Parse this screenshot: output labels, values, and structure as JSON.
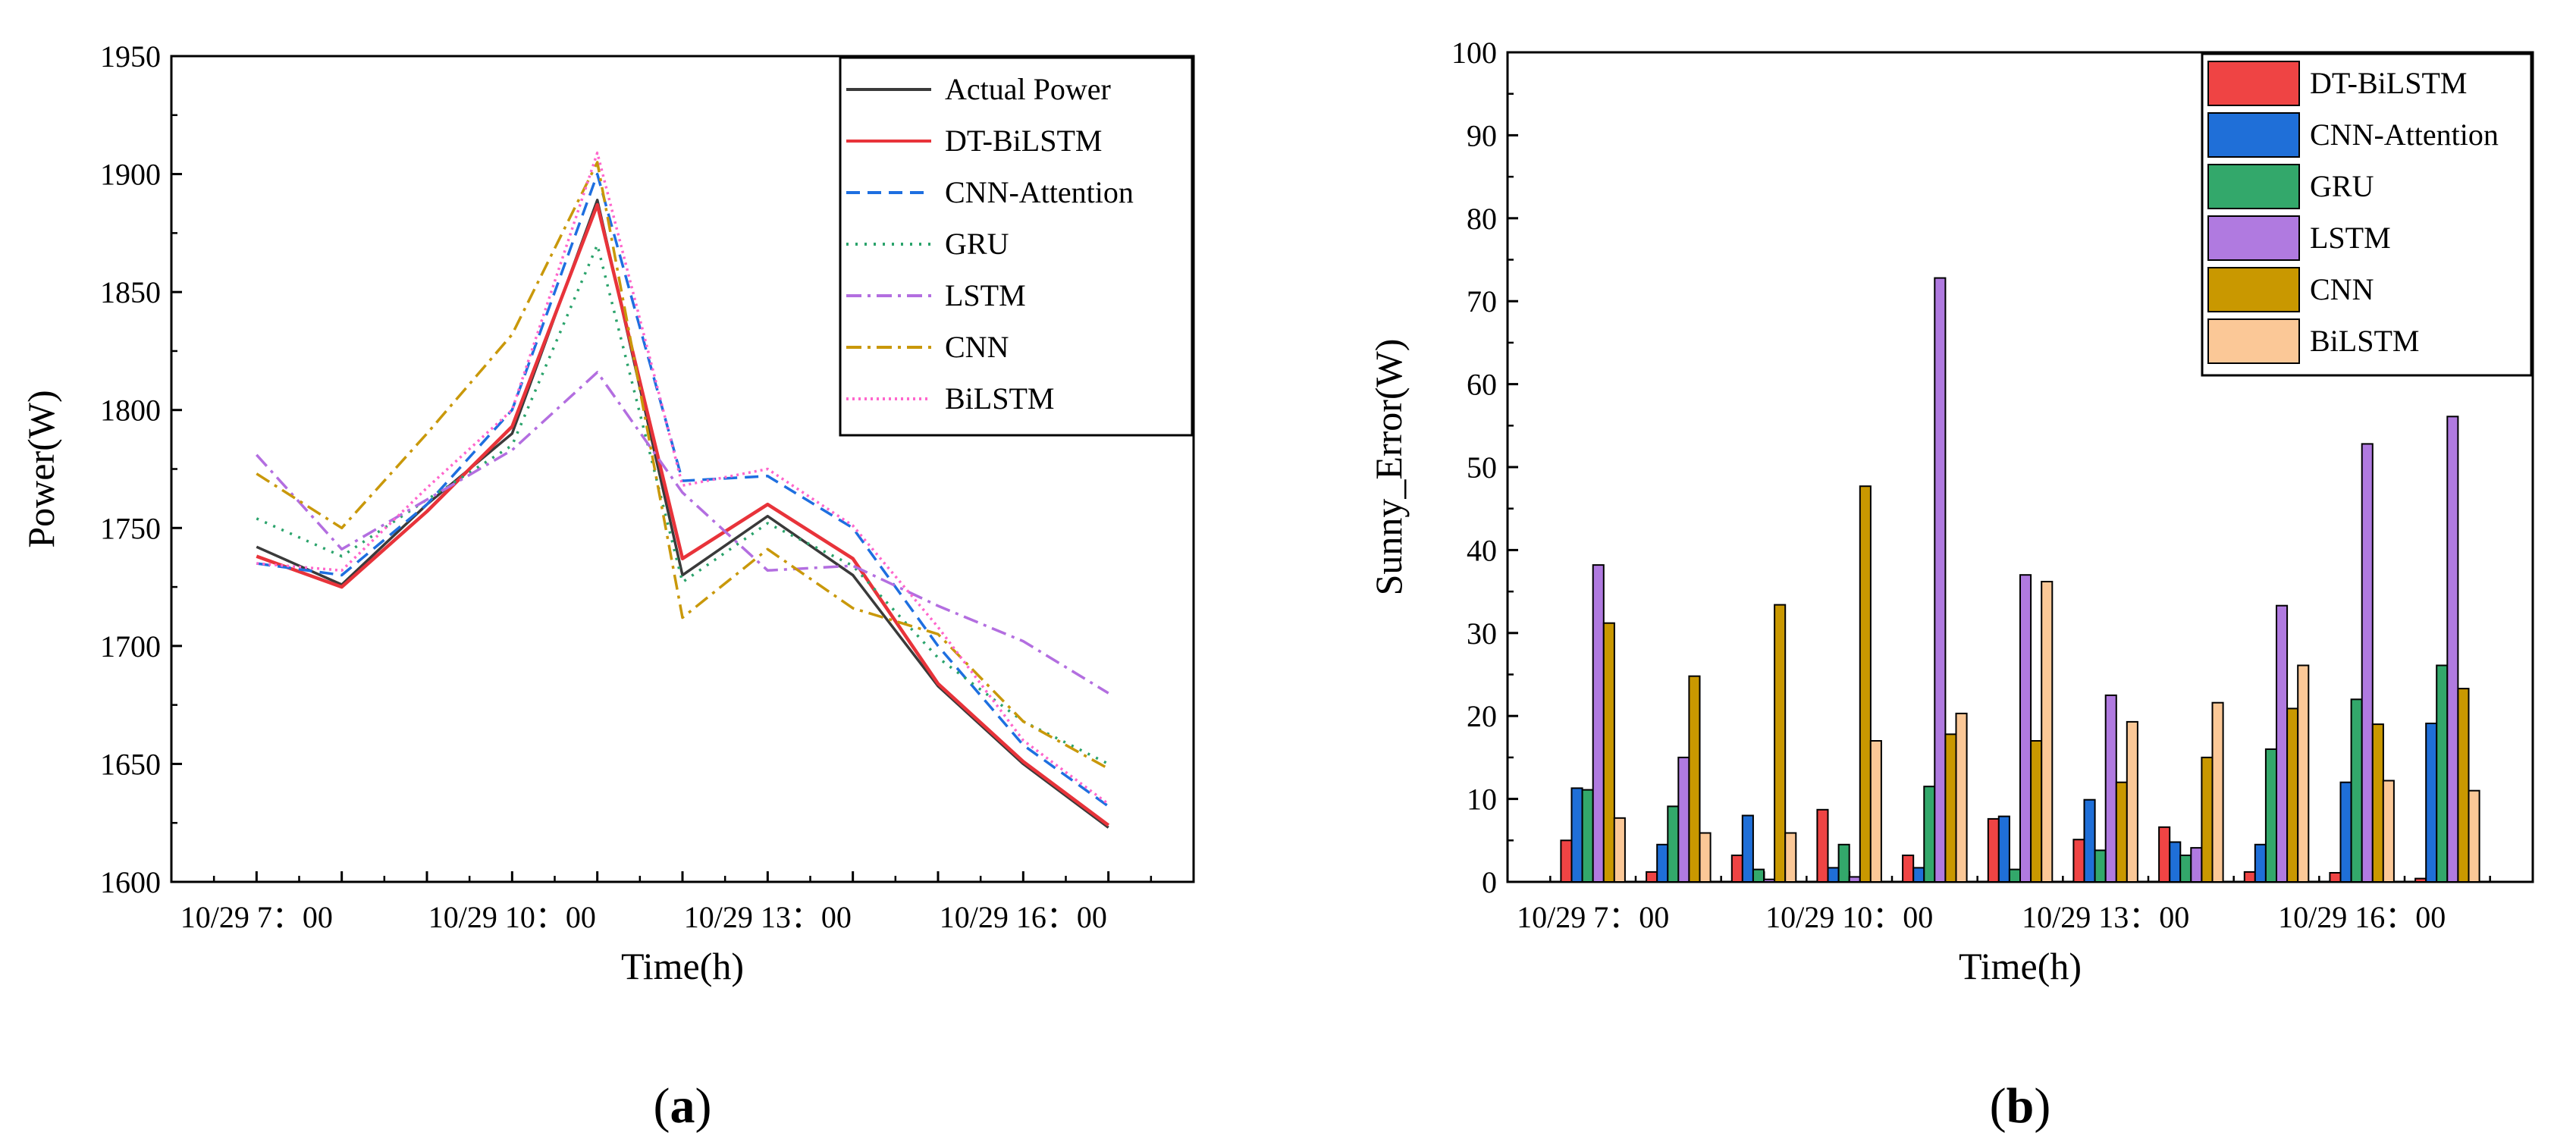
{
  "chart_data": [
    {
      "type": "line",
      "panel_label": {
        "open": "(",
        "letter": "a",
        "close": ")"
      },
      "xlabel": "Time(h)",
      "ylabel": "Power(W)",
      "ylim": [
        1600,
        1950
      ],
      "yticks": [
        1600,
        1650,
        1700,
        1750,
        1800,
        1850,
        1900,
        1950
      ],
      "x": [
        7,
        8,
        9,
        10,
        11,
        12,
        13,
        14,
        15,
        16,
        17
      ],
      "xlim": [
        6,
        18
      ],
      "xtick_labels": [
        {
          "x": 7,
          "label": "10/29 7：00"
        },
        {
          "x": 10,
          "label": "10/29 10：00"
        },
        {
          "x": 13,
          "label": "10/29 13：00"
        },
        {
          "x": 16,
          "label": "10/29 16：00"
        }
      ],
      "legend_position": "top-right",
      "series": [
        {
          "name": "Actual Power",
          "color": "#3a3a3a",
          "dash": "solid",
          "values": [
            1742,
            1726,
            1760,
            1790,
            1889,
            1730,
            1755,
            1730,
            1683,
            1650,
            1623
          ]
        },
        {
          "name": "DT-BiLSTM",
          "color": "#e8333a",
          "dash": "solid",
          "values": [
            1738,
            1725,
            1757,
            1793,
            1887,
            1737,
            1760,
            1737,
            1684,
            1651,
            1624
          ]
        },
        {
          "name": "CNN-Attention",
          "color": "#1e6fe0",
          "dash": "dash",
          "values": [
            1735,
            1730,
            1760,
            1800,
            1900,
            1770,
            1772,
            1750,
            1700,
            1658,
            1632
          ]
        },
        {
          "name": "GRU",
          "color": "#2aa36b",
          "dash": "dot",
          "values": [
            1754,
            1738,
            1762,
            1785,
            1870,
            1727,
            1752,
            1734,
            1695,
            1668,
            1650
          ]
        },
        {
          "name": "LSTM",
          "color": "#b36ee0",
          "dash": "dashdot",
          "values": [
            1781,
            1741,
            1762,
            1783,
            1816,
            1765,
            1732,
            1734,
            1717,
            1702,
            1680
          ]
        },
        {
          "name": "CNN",
          "color": "#c9980a",
          "dash": "dashdot",
          "values": [
            1773,
            1750,
            1790,
            1832,
            1905,
            1712,
            1741,
            1716,
            1705,
            1668,
            1648
          ]
        },
        {
          "name": "BiLSTM",
          "color": "#ff66cc",
          "dash": "finedot",
          "values": [
            1735,
            1732,
            1767,
            1800,
            1909,
            1768,
            1775,
            1751,
            1708,
            1660,
            1633
          ]
        }
      ]
    },
    {
      "type": "bar",
      "panel_label": {
        "open": "(",
        "letter": "b",
        "close": ")"
      },
      "xlabel": "Time(h)",
      "ylabel": "Sunny_Error(W)",
      "ylim": [
        0,
        100
      ],
      "yticks": [
        0,
        10,
        20,
        30,
        40,
        50,
        60,
        70,
        80,
        90,
        100
      ],
      "x": [
        7,
        8,
        9,
        10,
        11,
        12,
        13,
        14,
        15,
        16,
        17
      ],
      "xlim": [
        6,
        18
      ],
      "xtick_labels": [
        {
          "x": 7,
          "label": "10/29 7：00"
        },
        {
          "x": 10,
          "label": "10/29 10：00"
        },
        {
          "x": 13,
          "label": "10/29 13：00"
        },
        {
          "x": 16,
          "label": "10/29 16：00"
        }
      ],
      "legend_position": "top-right",
      "series": [
        {
          "name": "DT-BiLSTM",
          "color": "#ef4444",
          "values": [
            5.0,
            1.2,
            3.2,
            8.7,
            3.2,
            7.6,
            5.1,
            6.6,
            1.2,
            1.1,
            0.4
          ]
        },
        {
          "name": "CNN-Attention",
          "color": "#1f6fd8",
          "values": [
            11.3,
            4.5,
            8.0,
            1.7,
            1.7,
            7.9,
            9.9,
            4.8,
            4.5,
            12.0,
            19.1
          ]
        },
        {
          "name": "GRU",
          "color": "#33a86b",
          "values": [
            11.1,
            9.1,
            1.5,
            4.5,
            11.5,
            1.5,
            3.8,
            3.2,
            16.0,
            22.0,
            26.1
          ]
        },
        {
          "name": "LSTM",
          "color": "#b07ae0",
          "values": [
            38.2,
            15.0,
            0.3,
            0.6,
            72.8,
            37.0,
            22.5,
            4.1,
            33.3,
            52.8,
            56.1
          ]
        },
        {
          "name": "CNN",
          "color": "#c99800",
          "values": [
            31.2,
            24.8,
            33.4,
            47.7,
            17.8,
            17.0,
            12.0,
            15.0,
            20.9,
            19.0,
            23.3
          ]
        },
        {
          "name": "BiLSTM",
          "color": "#fbc897",
          "values": [
            7.7,
            5.9,
            5.9,
            17.0,
            20.3,
            36.2,
            19.3,
            21.6,
            26.1,
            12.2,
            11.0
          ]
        }
      ]
    }
  ]
}
